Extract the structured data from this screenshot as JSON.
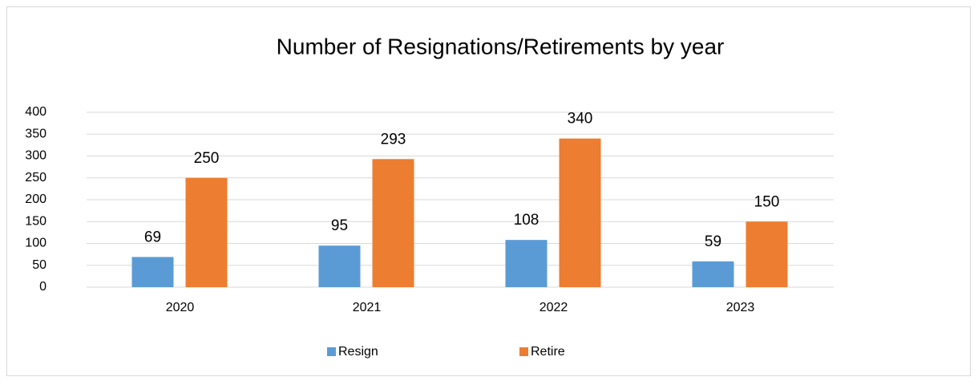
{
  "chart_data": {
    "type": "bar",
    "title": "Number of Resignations/Retirements by year",
    "categories": [
      "2020",
      "2021",
      "2022",
      "2023"
    ],
    "series": [
      {
        "name": "Resign",
        "color": "#5b9bd5",
        "values": [
          69,
          95,
          108,
          59
        ]
      },
      {
        "name": "Retire",
        "color": "#ed7d31",
        "values": [
          250,
          293,
          340,
          150
        ]
      }
    ],
    "ylim": [
      0,
      400
    ],
    "yticks": [
      0,
      50,
      100,
      150,
      200,
      250,
      300,
      350,
      400
    ],
    "grid": true,
    "legend": "bottom"
  }
}
